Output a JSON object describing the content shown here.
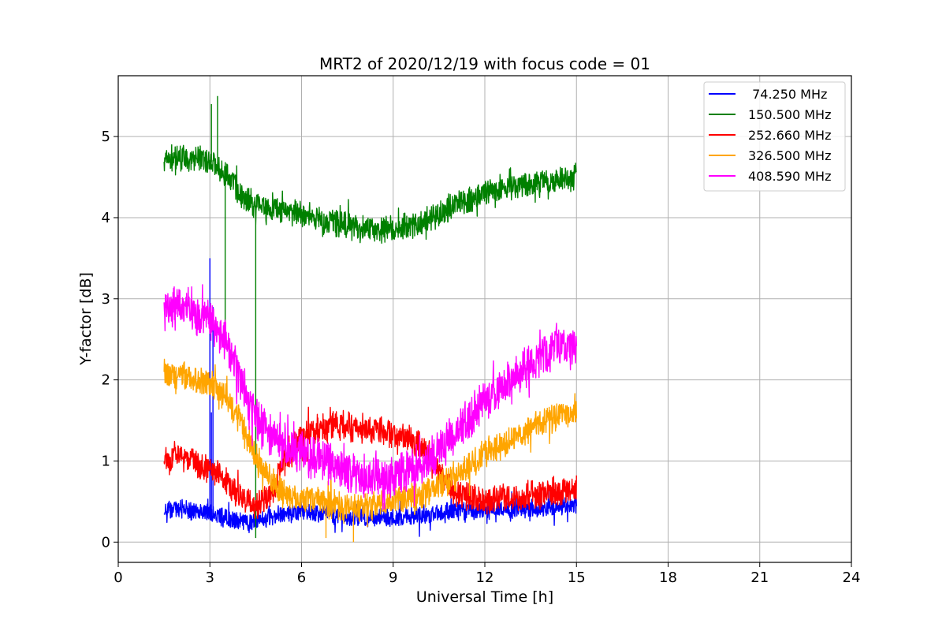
{
  "chart_data": {
    "type": "line",
    "title": "MRT2 of 2020/12/19 with focus code = 01",
    "xlabel": "Universal Time [h]",
    "ylabel": "Y-factor [dB]",
    "xlim": [
      0,
      24
    ],
    "ylim": [
      -0.25,
      5.75
    ],
    "xticks": [
      0,
      3,
      6,
      9,
      12,
      15,
      18,
      21,
      24
    ],
    "xtick_labels": [
      "0",
      "3",
      "6",
      "9",
      "12",
      "15",
      "18",
      "21",
      "24"
    ],
    "yticks": [
      0,
      1,
      2,
      3,
      4,
      5
    ],
    "ytick_labels": [
      "0",
      "1",
      "2",
      "3",
      "4",
      "5"
    ],
    "grid": true,
    "legend_position": "top-right",
    "series": [
      {
        "name": "74.250 MHz",
        "legend_label": " 74.250 MHz",
        "color": "#0000ff",
        "noise": 0.1,
        "points": [
          [
            1.5,
            0.42
          ],
          [
            2,
            0.4
          ],
          [
            2.5,
            0.38
          ],
          [
            3,
            0.35
          ],
          [
            3.5,
            0.3
          ],
          [
            4,
            0.25
          ],
          [
            4.5,
            0.25
          ],
          [
            5,
            0.33
          ],
          [
            6,
            0.38
          ],
          [
            7,
            0.33
          ],
          [
            8,
            0.3
          ],
          [
            9,
            0.3
          ],
          [
            10,
            0.33
          ],
          [
            11,
            0.38
          ],
          [
            12,
            0.4
          ],
          [
            13,
            0.42
          ],
          [
            14,
            0.42
          ],
          [
            15,
            0.45
          ]
        ],
        "spikes": [
          [
            3.0,
            3.5
          ],
          [
            3.1,
            2.9
          ],
          [
            3.05,
            1.6
          ]
        ]
      },
      {
        "name": "150.500 MHz",
        "legend_label": "150.500 MHz",
        "color": "#008000",
        "noise": 0.14,
        "points": [
          [
            1.5,
            4.7
          ],
          [
            2,
            4.75
          ],
          [
            2.5,
            4.72
          ],
          [
            3,
            4.7
          ],
          [
            3.5,
            4.55
          ],
          [
            4,
            4.3
          ],
          [
            4.5,
            4.15
          ],
          [
            5,
            4.1
          ],
          [
            6,
            4.05
          ],
          [
            7,
            3.95
          ],
          [
            8,
            3.85
          ],
          [
            9,
            3.85
          ],
          [
            10,
            3.95
          ],
          [
            11,
            4.15
          ],
          [
            12,
            4.3
          ],
          [
            13,
            4.38
          ],
          [
            14,
            4.45
          ],
          [
            15,
            4.5
          ]
        ],
        "spikes": [
          [
            3.05,
            5.4
          ],
          [
            3.25,
            5.5
          ],
          [
            3.5,
            2.6
          ],
          [
            4.5,
            0.05
          ]
        ]
      },
      {
        "name": "252.660 MHz",
        "legend_label": "252.660 MHz",
        "color": "#ff0000",
        "noise": 0.15,
        "points": [
          [
            1.5,
            1.0
          ],
          [
            2,
            1.05
          ],
          [
            2.5,
            0.98
          ],
          [
            3,
            0.9
          ],
          [
            3.5,
            0.75
          ],
          [
            4,
            0.55
          ],
          [
            4.5,
            0.42
          ],
          [
            5,
            0.6
          ],
          [
            5.5,
            1.05
          ],
          [
            6,
            1.3
          ],
          [
            7,
            1.45
          ],
          [
            8,
            1.4
          ],
          [
            9,
            1.35
          ],
          [
            10,
            1.2
          ],
          [
            10.5,
            0.9
          ],
          [
            11,
            0.6
          ],
          [
            12,
            0.52
          ],
          [
            13,
            0.55
          ],
          [
            14,
            0.6
          ],
          [
            15,
            0.62
          ]
        ],
        "spikes": []
      },
      {
        "name": "326.500 MHz",
        "legend_label": "326.500 MHz",
        "color": "#ffa500",
        "noise": 0.15,
        "points": [
          [
            1.5,
            2.1
          ],
          [
            2,
            2.05
          ],
          [
            2.5,
            2.0
          ],
          [
            3,
            1.95
          ],
          [
            3.5,
            1.8
          ],
          [
            4,
            1.5
          ],
          [
            4.5,
            1.05
          ],
          [
            5,
            0.75
          ],
          [
            5.5,
            0.55
          ],
          [
            6,
            0.55
          ],
          [
            7,
            0.45
          ],
          [
            8,
            0.42
          ],
          [
            9,
            0.5
          ],
          [
            10,
            0.6
          ],
          [
            11,
            0.8
          ],
          [
            12,
            1.1
          ],
          [
            13,
            1.3
          ],
          [
            14,
            1.5
          ],
          [
            15,
            1.62
          ]
        ],
        "spikes": [
          [
            7.7,
            0.0
          ],
          [
            6.8,
            0.05
          ]
        ]
      },
      {
        "name": "408.590 MHz",
        "legend_label": "408.590 MHz",
        "color": "#ff00ff",
        "noise": 0.22,
        "points": [
          [
            1.5,
            2.85
          ],
          [
            2,
            2.95
          ],
          [
            2.5,
            2.85
          ],
          [
            3,
            2.7
          ],
          [
            3.5,
            2.5
          ],
          [
            4,
            2.0
          ],
          [
            4.5,
            1.55
          ],
          [
            5,
            1.3
          ],
          [
            6,
            1.1
          ],
          [
            7,
            0.95
          ],
          [
            8,
            0.8
          ],
          [
            9,
            0.8
          ],
          [
            10,
            0.95
          ],
          [
            11,
            1.3
          ],
          [
            12,
            1.75
          ],
          [
            13,
            2.05
          ],
          [
            14,
            2.35
          ],
          [
            15,
            2.45
          ]
        ],
        "spikes": []
      }
    ]
  }
}
